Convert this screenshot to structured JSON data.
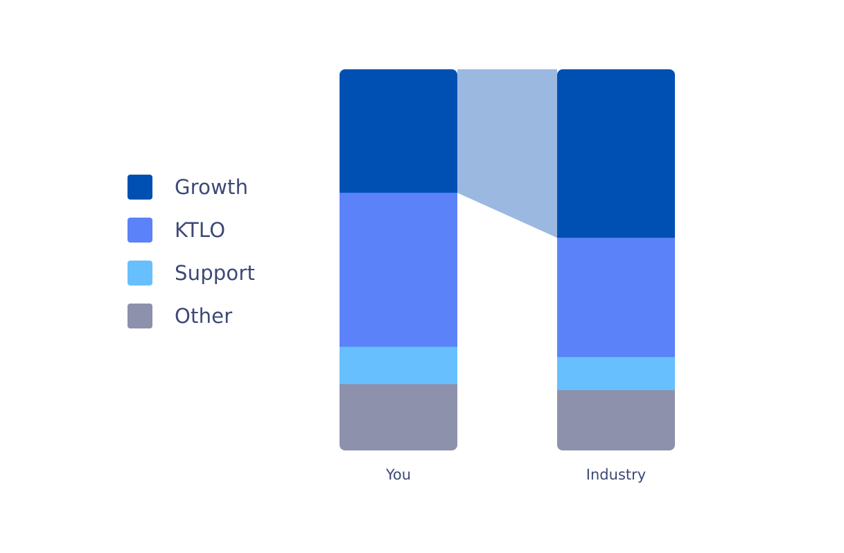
{
  "chart_data": {
    "type": "bar",
    "stacked": true,
    "normalized": true,
    "categories": [
      "You",
      "Industry"
    ],
    "series": [
      {
        "name": "Growth",
        "values": [
          32.4,
          44.2
        ],
        "color": "#0050b3"
      },
      {
        "name": "KTLO",
        "values": [
          40.4,
          31.3
        ],
        "color": "#5b82f8"
      },
      {
        "name": "Support",
        "values": [
          9.8,
          8.7
        ],
        "color": "#68bffe"
      },
      {
        "name": "Other",
        "values": [
          17.4,
          15.8
        ],
        "color": "#8d91ab"
      }
    ],
    "highlight": {
      "series": "Growth",
      "color": "#9bb9e0"
    },
    "ylim": [
      0,
      100
    ],
    "legend_position": "left",
    "grid": false
  }
}
